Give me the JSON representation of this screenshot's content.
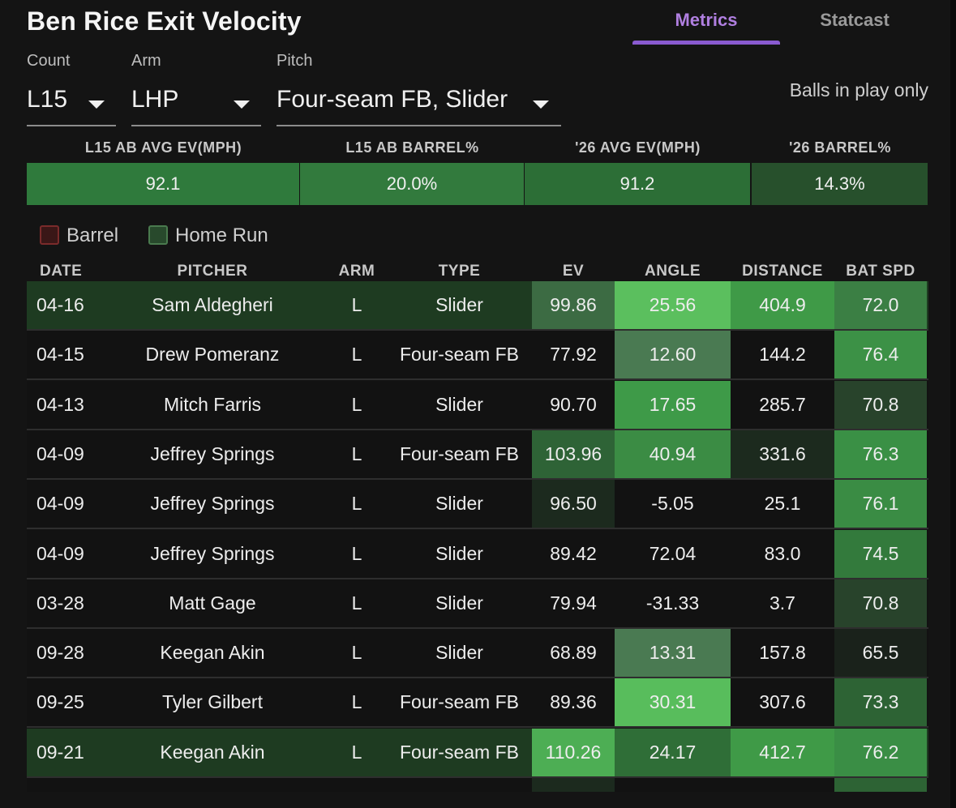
{
  "title": "Ben Rice Exit Velocity",
  "tabs": [
    {
      "label": "Metrics",
      "active": true
    },
    {
      "label": "Statcast",
      "active": false
    }
  ],
  "filters": [
    {
      "label": "Count",
      "value": "L15"
    },
    {
      "label": "Arm",
      "value": "LHP"
    },
    {
      "label": "Pitch",
      "value": "Four-seam FB, Slider"
    }
  ],
  "balls_in_play_label": "Balls in play only",
  "summary": [
    {
      "label": "L15 AB AVG EV(MPH)",
      "value": "92.1",
      "color": "#2f7a3c"
    },
    {
      "label": "L15 AB BARREL%",
      "value": "20.0%",
      "color": "#327a3d"
    },
    {
      "label": "'26 AVG EV(MPH)",
      "value": "91.2",
      "color": "#2c6e36"
    },
    {
      "label": "'26 BARREL%",
      "value": "14.3%",
      "color": "#27502c"
    }
  ],
  "legend": [
    {
      "label": "Barrel",
      "icon": "barrel-swatch",
      "color": "#3a1717",
      "border": "#7a2b2b"
    },
    {
      "label": "Home Run",
      "icon": "home-run-swatch",
      "color": "#28492c",
      "border": "#4a7a4e"
    }
  ],
  "table": {
    "columns": [
      "DATE",
      "PITCHER",
      "ARM",
      "TYPE",
      "EV",
      "ANGLE",
      "DISTANCE",
      "BAT SPD"
    ],
    "rows": [
      {
        "date": "04-16",
        "pitcher": "Sam Aldegheri",
        "arm": "L",
        "type": "Slider",
        "ev": "99.86",
        "angle": "25.56",
        "distance": "404.9",
        "bat_spd": "72.0",
        "row_color": "#1e3b21",
        "ev_color": "#3c6b43",
        "angle_color": "#5bbf5e",
        "distance_color": "#3f9a47",
        "bat_color": "#3b7f44"
      },
      {
        "date": "04-15",
        "pitcher": "Drew Pomeranz",
        "arm": "L",
        "type": "Four-seam FB",
        "ev": "77.92",
        "angle": "12.60",
        "distance": "144.2",
        "bat_spd": "76.4",
        "row_color": "#121212",
        "ev_color": "#121212",
        "angle_color": "#4a7a52",
        "distance_color": "#121212",
        "bat_color": "#3c9146"
      },
      {
        "date": "04-13",
        "pitcher": "Mitch Farris",
        "arm": "L",
        "type": "Slider",
        "ev": "90.70",
        "angle": "17.65",
        "distance": "285.7",
        "bat_spd": "70.8",
        "row_color": "#121212",
        "ev_color": "#121212",
        "angle_color": "#3e9a48",
        "distance_color": "#121212",
        "bat_color": "#28432b"
      },
      {
        "date": "04-09",
        "pitcher": "Jeffrey Springs",
        "arm": "L",
        "type": "Four-seam FB",
        "ev": "103.96",
        "angle": "40.94",
        "distance": "331.6",
        "bat_spd": "76.3",
        "row_color": "#121212",
        "ev_color": "#2e6336",
        "angle_color": "#3b8c44",
        "distance_color": "#1c2a1e",
        "bat_color": "#3a9045"
      },
      {
        "date": "04-09",
        "pitcher": "Jeffrey Springs",
        "arm": "L",
        "type": "Slider",
        "ev": "96.50",
        "angle": "-5.05",
        "distance": "25.1",
        "bat_spd": "76.1",
        "row_color": "#121212",
        "ev_color": "#1c2a1e",
        "angle_color": "#121212",
        "distance_color": "#121212",
        "bat_color": "#3a8c44"
      },
      {
        "date": "04-09",
        "pitcher": "Jeffrey Springs",
        "arm": "L",
        "type": "Slider",
        "ev": "89.42",
        "angle": "72.04",
        "distance": "83.0",
        "bat_spd": "74.5",
        "row_color": "#121212",
        "ev_color": "#121212",
        "angle_color": "#121212",
        "distance_color": "#121212",
        "bat_color": "#337a3c"
      },
      {
        "date": "03-28",
        "pitcher": "Matt Gage",
        "arm": "L",
        "type": "Slider",
        "ev": "79.94",
        "angle": "-31.33",
        "distance": "3.7",
        "bat_spd": "70.8",
        "row_color": "#121212",
        "ev_color": "#121212",
        "angle_color": "#121212",
        "distance_color": "#121212",
        "bat_color": "#28432b"
      },
      {
        "date": "09-28",
        "pitcher": "Keegan Akin",
        "arm": "L",
        "type": "Slider",
        "ev": "68.89",
        "angle": "13.31",
        "distance": "157.8",
        "bat_spd": "65.5",
        "row_color": "#121212",
        "ev_color": "#121212",
        "angle_color": "#4a7a52",
        "distance_color": "#121212",
        "bat_color": "#1a221b"
      },
      {
        "date": "09-25",
        "pitcher": "Tyler Gilbert",
        "arm": "L",
        "type": "Four-seam FB",
        "ev": "89.36",
        "angle": "30.31",
        "distance": "307.6",
        "bat_spd": "73.3",
        "row_color": "#121212",
        "ev_color": "#121212",
        "angle_color": "#58bd5c",
        "distance_color": "#121212",
        "bat_color": "#2d6334"
      },
      {
        "date": "09-21",
        "pitcher": "Keegan Akin",
        "arm": "L",
        "type": "Four-seam FB",
        "ev": "110.26",
        "angle": "24.17",
        "distance": "412.7",
        "bat_spd": "76.2",
        "row_color": "#1e3b21",
        "ev_color": "#4dae54",
        "angle_color": "#2f6e37",
        "distance_color": "#3f9a47",
        "bat_color": "#3a8e45"
      }
    ]
  }
}
